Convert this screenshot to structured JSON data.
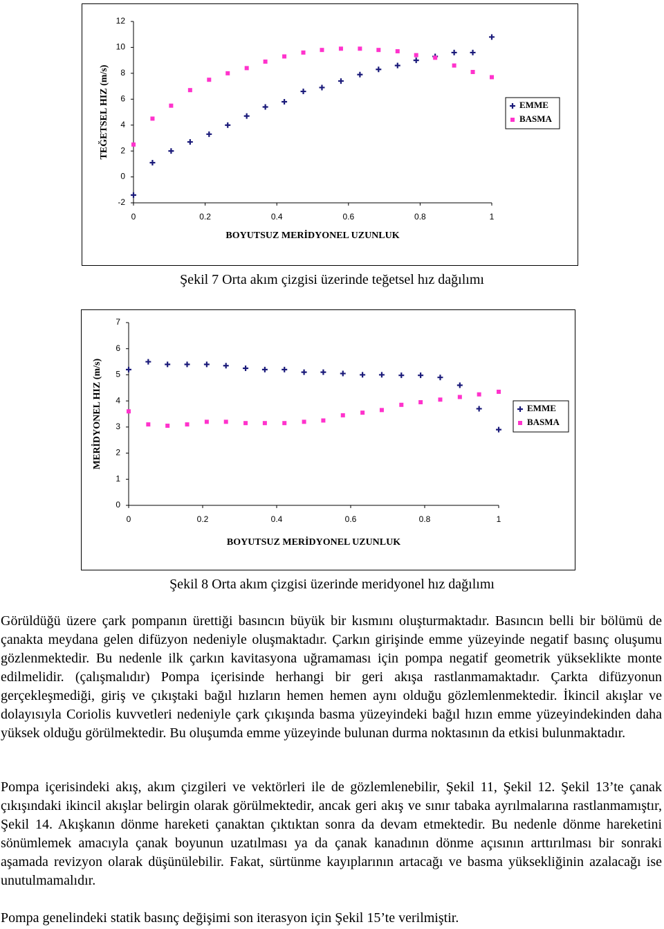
{
  "chart_data": [
    {
      "type": "scatter",
      "ylabel": "TEĞETSEL HIZ (m/s)",
      "xlabel": "BOYUTSUZ MERİDYONEL UZUNLUK",
      "x": [
        0,
        0.053,
        0.105,
        0.158,
        0.211,
        0.263,
        0.316,
        0.368,
        0.421,
        0.474,
        0.526,
        0.579,
        0.632,
        0.684,
        0.737,
        0.789,
        0.842,
        0.895,
        0.947,
        1
      ],
      "series": [
        {
          "name": "EMME",
          "color": "#1a1a7a",
          "marker": "plus",
          "values": [
            -1.4,
            1.1,
            2.0,
            2.7,
            3.3,
            4.0,
            4.7,
            5.4,
            5.8,
            6.6,
            6.9,
            7.4,
            7.9,
            8.3,
            8.6,
            9.0,
            9.3,
            9.6,
            9.6,
            10.8
          ]
        },
        {
          "name": "BASMA",
          "color": "#ff33cc",
          "marker": "square",
          "values": [
            2.5,
            4.5,
            5.5,
            6.7,
            7.5,
            8.0,
            8.4,
            8.9,
            9.3,
            9.6,
            9.8,
            9.9,
            9.9,
            9.8,
            9.7,
            9.4,
            9.2,
            8.6,
            8.1,
            7.7
          ]
        }
      ],
      "xlim": [
        0,
        1
      ],
      "xticks": [
        0,
        0.2,
        0.4,
        0.6,
        0.8,
        1
      ],
      "ylim": [
        -2,
        12
      ],
      "yticks": [
        -2,
        0,
        2,
        4,
        6,
        8,
        10,
        12
      ],
      "grid": false,
      "legend": "right"
    },
    {
      "type": "scatter",
      "ylabel": "MERİDYONEL HIZ (m/s)",
      "xlabel": "BOYUTSUZ MERİDYONEL UZUNLUK",
      "x": [
        0,
        0.053,
        0.105,
        0.158,
        0.211,
        0.263,
        0.316,
        0.368,
        0.421,
        0.474,
        0.526,
        0.579,
        0.632,
        0.684,
        0.737,
        0.789,
        0.842,
        0.895,
        0.947,
        1
      ],
      "series": [
        {
          "name": "EMME",
          "color": "#1a1a7a",
          "marker": "plus",
          "values": [
            5.2,
            5.5,
            5.4,
            5.4,
            5.4,
            5.35,
            5.25,
            5.2,
            5.2,
            5.1,
            5.1,
            5.05,
            5.0,
            5.0,
            4.98,
            4.98,
            4.9,
            4.6,
            3.7,
            2.9
          ]
        },
        {
          "name": "BASMA",
          "color": "#ff33cc",
          "marker": "square",
          "values": [
            3.6,
            3.1,
            3.05,
            3.1,
            3.2,
            3.2,
            3.15,
            3.15,
            3.15,
            3.2,
            3.25,
            3.45,
            3.55,
            3.65,
            3.85,
            3.95,
            4.05,
            4.15,
            4.25,
            4.35
          ]
        }
      ],
      "xlim": [
        0,
        1
      ],
      "xticks": [
        0,
        0.2,
        0.4,
        0.6,
        0.8,
        1
      ],
      "ylim": [
        0,
        7
      ],
      "yticks": [
        0,
        1,
        2,
        3,
        4,
        5,
        6,
        7
      ],
      "grid": false,
      "legend": "right"
    }
  ],
  "captions": [
    "Şekil 7 Orta akım çizgisi üzerinde teğetsel hız dağılımı",
    "Şekil 8 Orta akım çizgisi üzerinde meridyonel hız dağılımı"
  ],
  "paragraphs": [
    "Görüldüğü üzere çark pompanın ürettiği basıncın büyük bir kısmını oluşturmaktadır. Basıncın belli bir bölümü de çanakta meydana gelen difüzyon nedeniyle oluşmaktadır. Çarkın girişinde emme yüzeyinde negatif basınç oluşumu gözlenmektedir. Bu nedenle ilk çarkın kavitasyona uğramaması için pompa negatif geometrik yükseklikte monte edilmelidir. (çalışmalıdır) Pompa içerisinde herhangi bir geri akışa rastlanmamaktadır. Çarkta difüzyonun gerçekleşmediği, giriş ve çıkıştaki bağıl hızların hemen hemen aynı olduğu gözlemlenmektedir. İkincil akışlar ve dolayısıyla Coriolis kuvvetleri nedeniyle çark çıkışında basma yüzeyindeki bağıl hızın emme yüzeyindekinden daha yüksek olduğu görülmektedir. Bu oluşumda emme yüzeyinde bulunan durma noktasının da etkisi bulunmaktadır.",
    "Pompa içerisindeki akış, akım çizgileri ve vektörleri ile de gözlemlenebilir, Şekil 11, Şekil 12. Şekil 13’te çanak çıkışındaki ikincil akışlar belirgin olarak görülmektedir, ancak geri akış ve sınır tabaka ayrılmalarına rastlanmamıştır, Şekil 14. Akışkanın dönme hareketi çanaktan çıktıktan sonra da devam etmektedir. Bu nedenle dönme hareketini sönümlemek amacıyla çanak boyunun uzatılması ya da çanak kanadının dönme açısının arttırılması bir sonraki aşamada revizyon olarak düşünülebilir. Fakat, sürtünme kayıplarının artacağı ve basma yüksekliğinin azalacağı ise unutulmamalıdır.",
    "Pompa genelindeki statik basınç değişimi son iterasyon için Şekil 15’te verilmiştir."
  ]
}
